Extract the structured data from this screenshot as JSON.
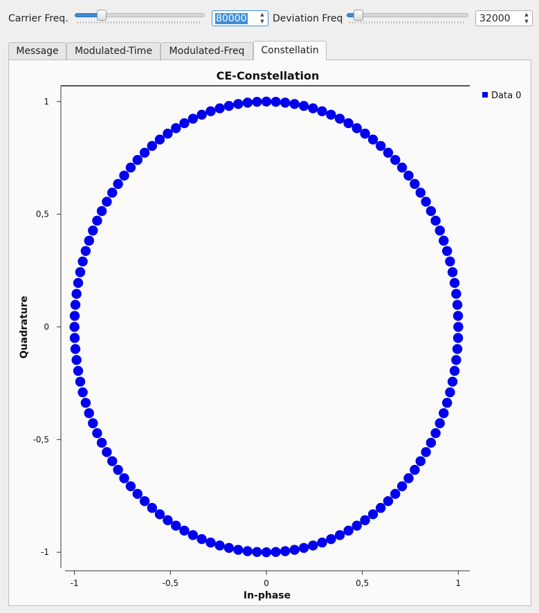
{
  "controls": {
    "carrier": {
      "label": "Carrier Freq.",
      "value": "80000",
      "slider_level": 0.18
    },
    "deviation": {
      "label": "Deviation Freq",
      "value": "32000",
      "slider_level": 0.06
    }
  },
  "tabs": [
    {
      "label": "Message",
      "active": false
    },
    {
      "label": "Modulated-Time",
      "active": false
    },
    {
      "label": "Modulated-Freq",
      "active": false
    },
    {
      "label": "Constellatin",
      "active": true
    }
  ],
  "colors": {
    "marker": "#0000ee",
    "slider_fill": "#3d8ed9"
  },
  "chart_data": {
    "type": "scatter",
    "title": "CE-Constellation",
    "xlabel": "In-phase",
    "ylabel": "Quadrature",
    "xlim": [
      -1.06,
      1.06
    ],
    "ylim": [
      -1.07,
      1.07
    ],
    "xticks": [
      -1,
      -0.5,
      0,
      0.5,
      1
    ],
    "xtick_labels": [
      "-1",
      "-0,5",
      "0",
      "0,5",
      "1"
    ],
    "yticks": [
      -1,
      -0.5,
      0,
      0.5,
      1
    ],
    "ytick_labels": [
      "-1",
      "-0,5",
      "0",
      "0,5",
      "1"
    ],
    "grid": false,
    "legend": "top-right",
    "series": [
      {
        "name": "Data 0",
        "shape": "unit-circle",
        "points": 128,
        "radius": 1.0,
        "color": "#0000ee"
      }
    ]
  }
}
